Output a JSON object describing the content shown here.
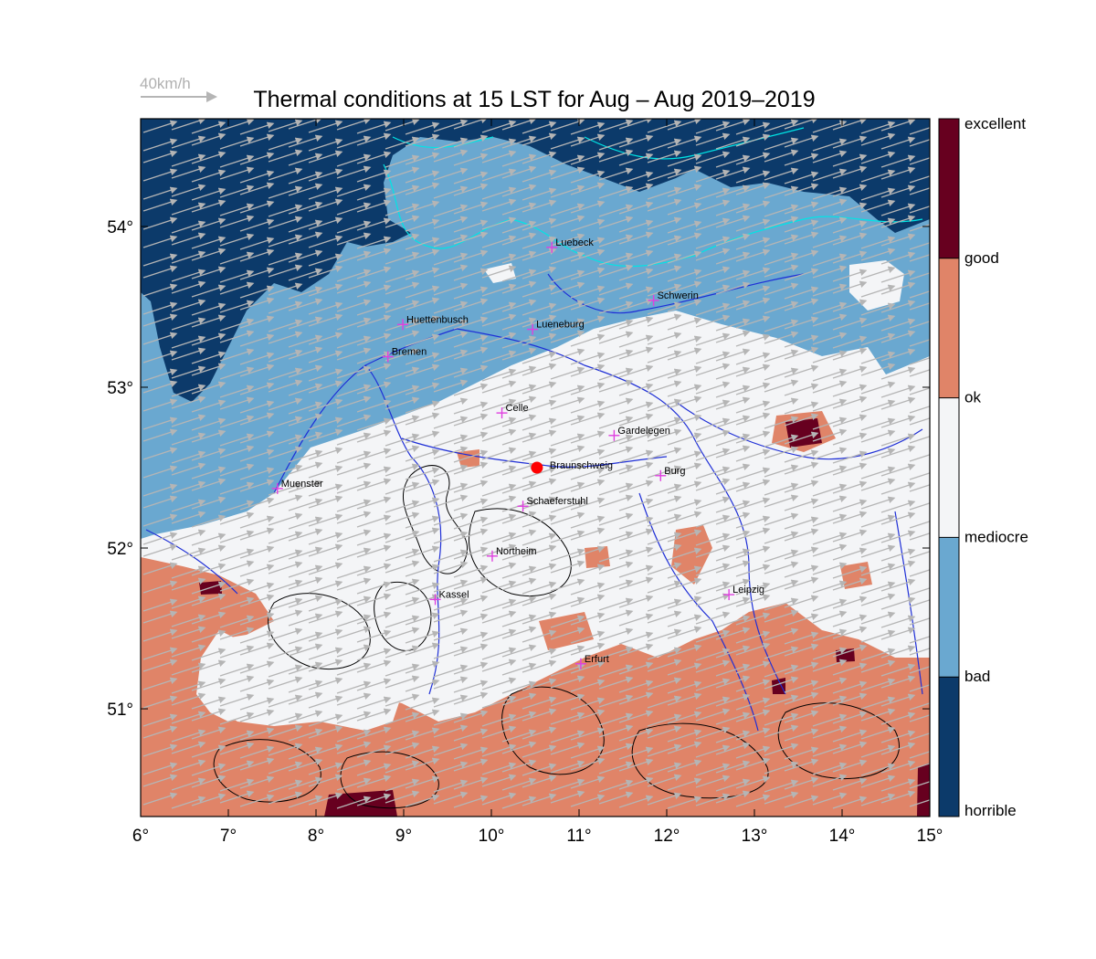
{
  "title": "Thermal conditions at 15 LST for Aug – Aug  2019–2019",
  "wind_scale": {
    "label": "40km/h"
  },
  "axes": {
    "x_ticks": [
      {
        "lon": 6,
        "label": "6°"
      },
      {
        "lon": 7,
        "label": "7°"
      },
      {
        "lon": 8,
        "label": "8°"
      },
      {
        "lon": 9,
        "label": "9°"
      },
      {
        "lon": 10,
        "label": "10°"
      },
      {
        "lon": 11,
        "label": "11°"
      },
      {
        "lon": 12,
        "label": "12°"
      },
      {
        "lon": 13,
        "label": "13°"
      },
      {
        "lon": 14,
        "label": "14°"
      },
      {
        "lon": 15,
        "label": "15°"
      }
    ],
    "y_ticks": [
      {
        "lat": 54,
        "label": "54°"
      },
      {
        "lat": 53,
        "label": "53°"
      },
      {
        "lat": 52,
        "label": "52°"
      },
      {
        "lat": 51,
        "label": "51°"
      }
    ],
    "lon_range": [
      6,
      15
    ],
    "lat_range": [
      50.33,
      54.67
    ]
  },
  "colorbar": {
    "labels": [
      "excellent",
      "good",
      "ok",
      "mediocre",
      "bad",
      "horrible"
    ],
    "colors": [
      "#67001f",
      "#e08468",
      "#f4f5f7",
      "#6aa8d0",
      "#0c3a6a"
    ]
  },
  "colors": {
    "horrible": "#0c3a6a",
    "bad": "#6aa8d0",
    "mediocre": "#f4f5f7",
    "ok": "#e08468",
    "good": "#67001f",
    "arrow": "#b5b5b5",
    "river": "#1f2fd6",
    "coast": "#00e5e5",
    "city_marker": "#e040e0",
    "highlight_point": "#ff0000"
  },
  "cities": [
    {
      "name": "Luebeck",
      "lon": 10.69,
      "lat": 53.87
    },
    {
      "name": "Schwerin",
      "lon": 11.85,
      "lat": 53.54
    },
    {
      "name": "Huettenbusch",
      "lon": 8.99,
      "lat": 53.39
    },
    {
      "name": "Lueneburg",
      "lon": 10.47,
      "lat": 53.36
    },
    {
      "name": "Bremen",
      "lon": 8.82,
      "lat": 53.19
    },
    {
      "name": "Celle",
      "lon": 10.12,
      "lat": 52.84
    },
    {
      "name": "Gardelegen",
      "lon": 11.4,
      "lat": 52.7
    },
    {
      "name": "Burg",
      "lon": 11.93,
      "lat": 52.45
    },
    {
      "name": "Muenster",
      "lon": 7.56,
      "lat": 52.37
    },
    {
      "name": "Schaeferstuhl",
      "lon": 10.36,
      "lat": 52.26
    },
    {
      "name": "Northeim",
      "lon": 10.01,
      "lat": 51.95
    },
    {
      "name": "Kassel",
      "lon": 9.36,
      "lat": 51.68
    },
    {
      "name": "Leipzig",
      "lon": 12.71,
      "lat": 51.71
    },
    {
      "name": "Erfurt",
      "lon": 11.02,
      "lat": 51.28
    }
  ],
  "highlight": {
    "name": "Braunschweig",
    "lon": 10.52,
    "lat": 52.5
  },
  "wind": {
    "speed_kmh": 32,
    "direction_to_deg": 72
  }
}
